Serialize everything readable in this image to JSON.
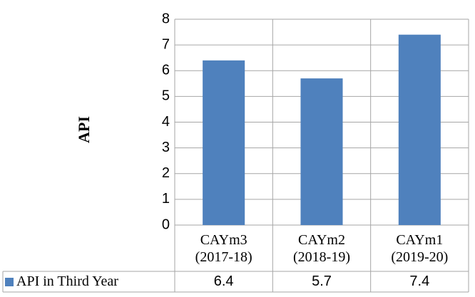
{
  "chart_data": {
    "type": "bar",
    "y_label": "API",
    "categories": [
      "CAYm3 (2017-18)",
      "CAYm2 (2018-19)",
      "CAYm1 (2019-20)"
    ],
    "series": [
      {
        "name": "API in Third Year",
        "color": "#4f81bd",
        "values": [
          6.4,
          5.7,
          7.4
        ]
      }
    ],
    "ylim": [
      0,
      8
    ],
    "yticks": [
      0,
      1,
      2,
      3,
      4,
      5,
      6,
      7,
      8
    ],
    "grid": true,
    "data_table": true
  }
}
